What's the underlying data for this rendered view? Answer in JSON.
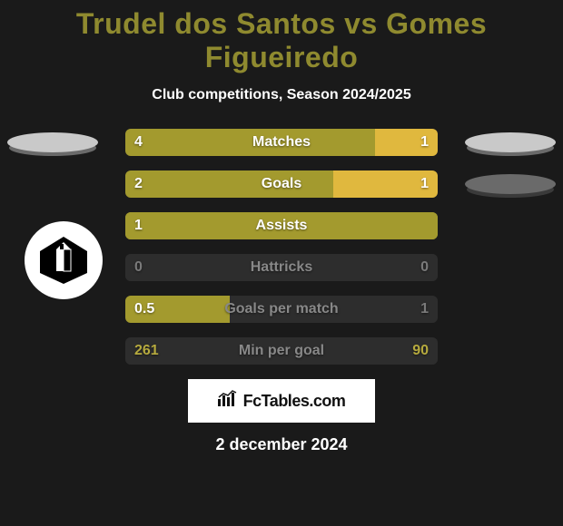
{
  "title_color": "#8f8a2f",
  "title_text": "Trudel dos Santos vs Gomes Figueiredo",
  "subtitle": "Club competitions, Season 2024/2025",
  "date": "2 december 2024",
  "brand": "FcTables.com",
  "colors": {
    "left_badge1": "#c9c9c9",
    "left_badge1_shadow": "#6a6a6a",
    "right_badge1": "#c9c9c9",
    "right_badge1_shadow": "#6a6a6a",
    "right_badge2": "#6a6a6a",
    "right_badge2_shadow": "#3a3a3a",
    "club_crest_bg": "#ffffff",
    "track_empty": "#2d2d2d"
  },
  "stats": [
    {
      "label": "Matches",
      "left_value": "4",
      "right_value": "1",
      "left_pct": 80,
      "left_color": "#a39a2e",
      "right_color": "#e0b83e",
      "track_color": "#2d2d2d"
    },
    {
      "label": "Goals",
      "left_value": "2",
      "right_value": "1",
      "left_pct": 66.7,
      "left_color": "#a39a2e",
      "right_color": "#e0b83e",
      "track_color": "#2d2d2d"
    },
    {
      "label": "Assists",
      "left_value": "1",
      "right_value": "",
      "left_pct": 100,
      "left_color": "#a39a2e",
      "right_color": "#e0b83e",
      "track_color": "#a39a2e"
    },
    {
      "label": "Hattricks",
      "left_value": "0",
      "right_value": "0",
      "left_pct": 50,
      "left_color": "#2d2d2d",
      "right_color": "#2d2d2d",
      "track_color": "#2d2d2d",
      "value_color": "#7a7a7a",
      "label_color": "#888888"
    },
    {
      "label": "Goals per match",
      "left_value": "0.5",
      "right_value": "1",
      "left_pct": 33.3,
      "left_color": "#a39a2e",
      "right_color": "#2d2d2d",
      "track_color": "#2d2d2d",
      "right_value_color": "#7a7a7a",
      "label_color": "#888888"
    },
    {
      "label": "Min per goal",
      "left_value": "261",
      "right_value": "90",
      "left_pct": 74.4,
      "left_color": "#2d2d2d",
      "right_color": "#2d2d2d",
      "track_color": "#2d2d2d",
      "value_color": "#b6aa3e",
      "label_color": "#888888"
    }
  ]
}
